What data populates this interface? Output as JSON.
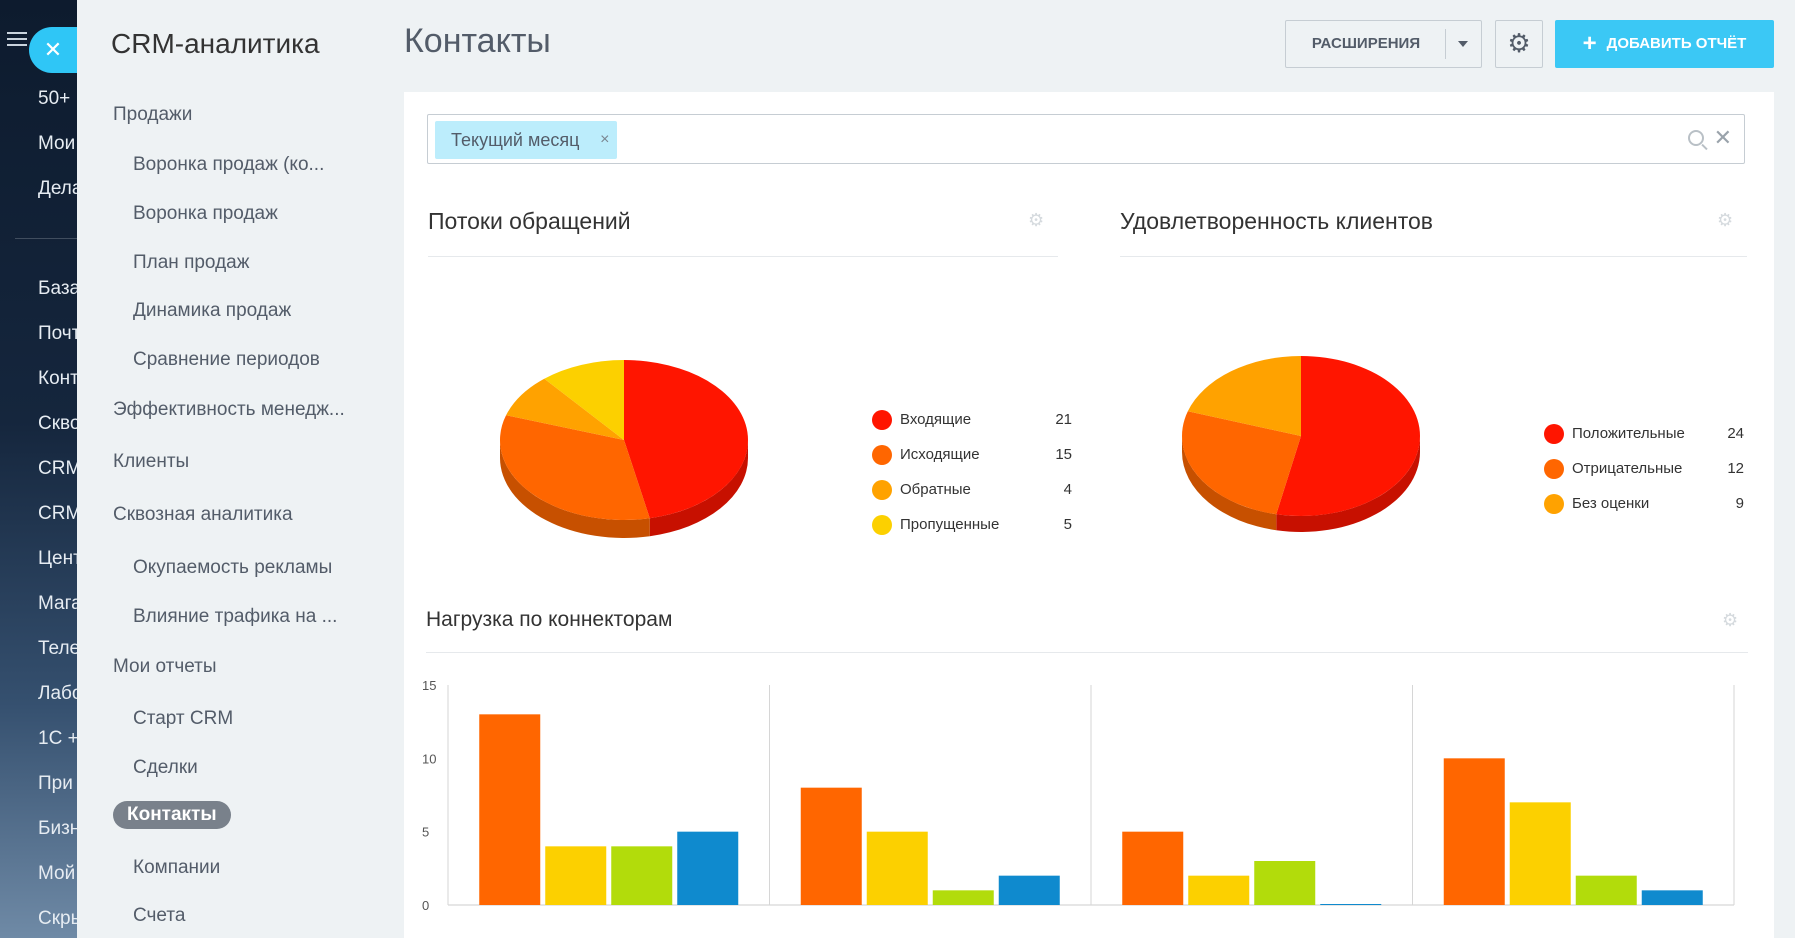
{
  "rail": {
    "items": [
      "50+",
      "Мои",
      "Дела",
      "База",
      "Почт",
      "Конт",
      "Скво",
      "CRM",
      "CRM",
      "Цент",
      "Мага",
      "Теле",
      "Лабо",
      "1С +",
      "При",
      "Бизн",
      "Мой",
      "Скры"
    ]
  },
  "menu": {
    "title": "CRM-аналитика",
    "items": [
      {
        "label": "Продажи",
        "level": 1
      },
      {
        "label": "Воронка продаж (ко...",
        "level": 2
      },
      {
        "label": "Воронка продаж",
        "level": 2
      },
      {
        "label": "План продаж",
        "level": 2
      },
      {
        "label": "Динамика продаж",
        "level": 2
      },
      {
        "label": "Сравнение периодов",
        "level": 2
      },
      {
        "label": "Эффективность менедж...",
        "level": 1
      },
      {
        "label": "Клиенты",
        "level": 1
      },
      {
        "label": "Сквозная аналитика",
        "level": 1
      },
      {
        "label": "Окупаемость рекламы",
        "level": 2
      },
      {
        "label": "Влияние трафика на ...",
        "level": 2
      },
      {
        "label": "Мои отчеты",
        "level": 1
      },
      {
        "label": "Старт CRM",
        "level": 2
      },
      {
        "label": "Сделки",
        "level": 2
      },
      {
        "label": "Контакты",
        "level": 1,
        "active": true
      },
      {
        "label": "Компании",
        "level": 2
      },
      {
        "label": "Счета",
        "level": 2
      }
    ]
  },
  "header": {
    "title": "Контакты",
    "extensions_label": "РАСШИРЕНИЯ",
    "add_report_label": "ДОБАВИТЬ ОТЧЁТ"
  },
  "filter": {
    "tag": "Текущий месяц"
  },
  "colors": {
    "accent": "#3bc8f5",
    "red": "#ff1500",
    "orange": "#ff6600",
    "amber": "#ffa200",
    "yellow": "#fcd000",
    "green": "#b2dc0b",
    "blue": "#0f8ace"
  },
  "widgets": {
    "flows": {
      "title": "Потоки обращений",
      "legend": [
        {
          "name": "Входящие",
          "value": 21,
          "color": "#ff1500"
        },
        {
          "name": "Исходящие",
          "value": 15,
          "color": "#ff6600"
        },
        {
          "name": "Обратные",
          "value": 4,
          "color": "#ffa200"
        },
        {
          "name": "Пропущенные",
          "value": 5,
          "color": "#fcd000"
        }
      ]
    },
    "satisfaction": {
      "title": "Удовлетворенность клиентов",
      "legend": [
        {
          "name": "Положительные",
          "value": 24,
          "color": "#ff1500"
        },
        {
          "name": "Отрицательные",
          "value": 12,
          "color": "#ff6600"
        },
        {
          "name": "Без оценки",
          "value": 9,
          "color": "#ffa200"
        }
      ]
    },
    "connectors": {
      "title": "Нагрузка по коннекторам"
    }
  },
  "chart_data": [
    {
      "type": "pie",
      "title": "Потоки обращений",
      "labels": [
        "Входящие",
        "Исходящие",
        "Обратные",
        "Пропущенные"
      ],
      "values": [
        21,
        15,
        4,
        5
      ]
    },
    {
      "type": "pie",
      "title": "Удовлетворенность клиентов",
      "labels": [
        "Положительные",
        "Отрицательные",
        "Без оценки"
      ],
      "values": [
        24,
        12,
        9
      ]
    },
    {
      "type": "bar",
      "title": "Нагрузка по коннекторам",
      "categories": [
        "",
        "",
        "",
        ""
      ],
      "series": [
        {
          "values": [
            13,
            8,
            5,
            10
          ],
          "color": "#ff6600"
        },
        {
          "values": [
            4,
            5,
            2,
            7
          ],
          "color": "#fcd000"
        },
        {
          "values": [
            4,
            1,
            3,
            2
          ],
          "color": "#b2dc0b"
        },
        {
          "values": [
            5,
            2,
            0,
            1
          ],
          "color": "#0f8ace"
        }
      ],
      "ylim": [
        0,
        15
      ],
      "yticks": [
        0,
        5,
        10,
        15
      ],
      "grid": true
    }
  ]
}
